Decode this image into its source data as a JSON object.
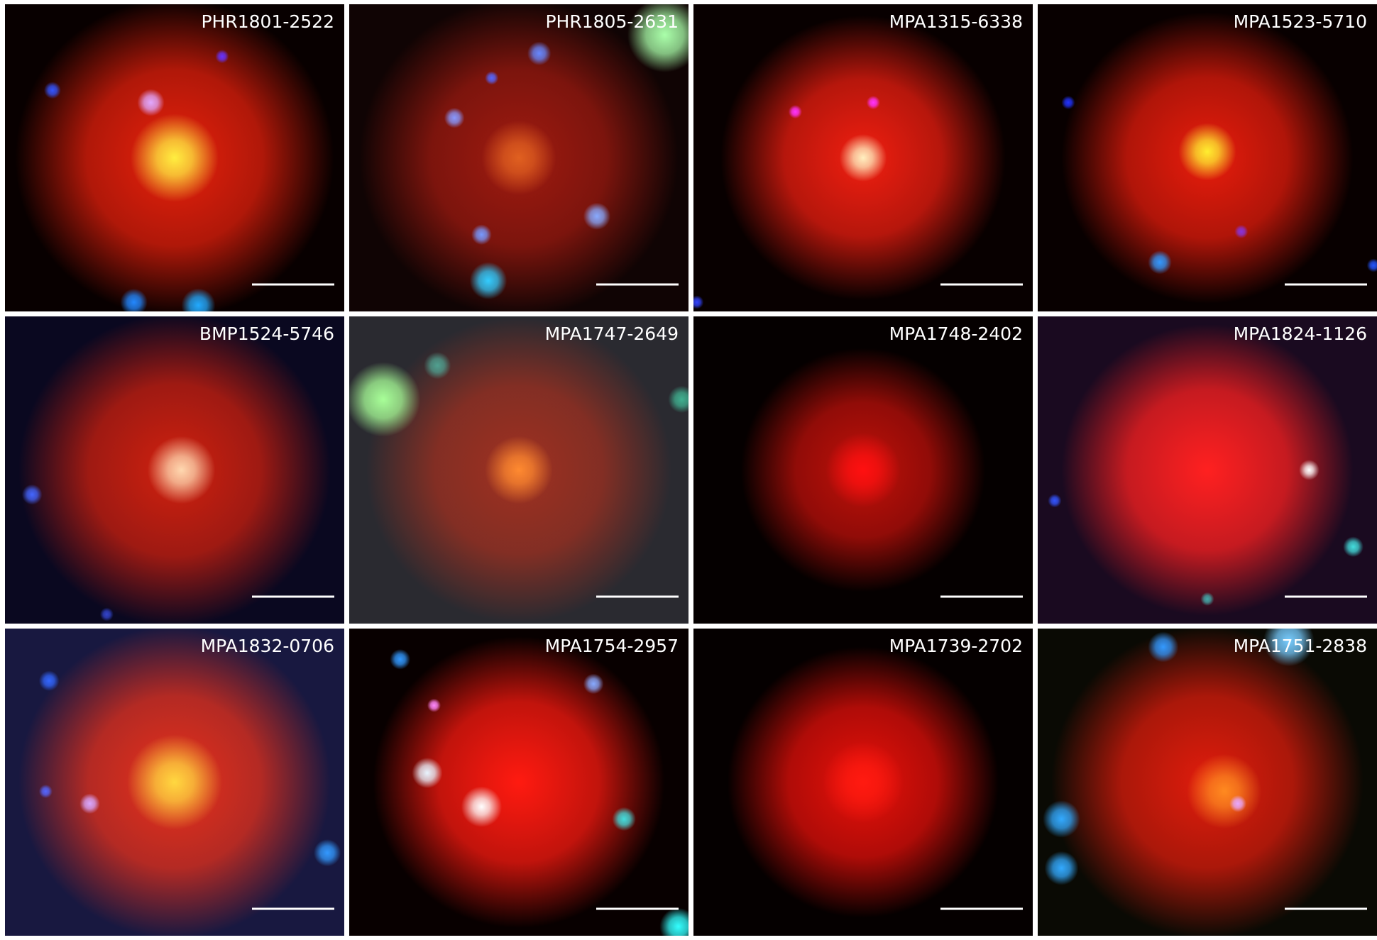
{
  "panels": [
    {
      "label": "PHR1801-2522"
    },
    {
      "label": "PHR1805-2631"
    },
    {
      "label": "MPA1315-6338"
    },
    {
      "label": "MPA1523-5710"
    },
    {
      "label": "BMP1524-5746"
    },
    {
      "label": "MPA1747-2649"
    },
    {
      "label": "MPA1748-2402"
    },
    {
      "label": "MPA1824-1126"
    },
    {
      "label": "MPA1832-0706"
    },
    {
      "label": "MPA1754-2957"
    },
    {
      "label": "MPA1739-2702"
    },
    {
      "label": "MPA1751-2838"
    }
  ]
}
